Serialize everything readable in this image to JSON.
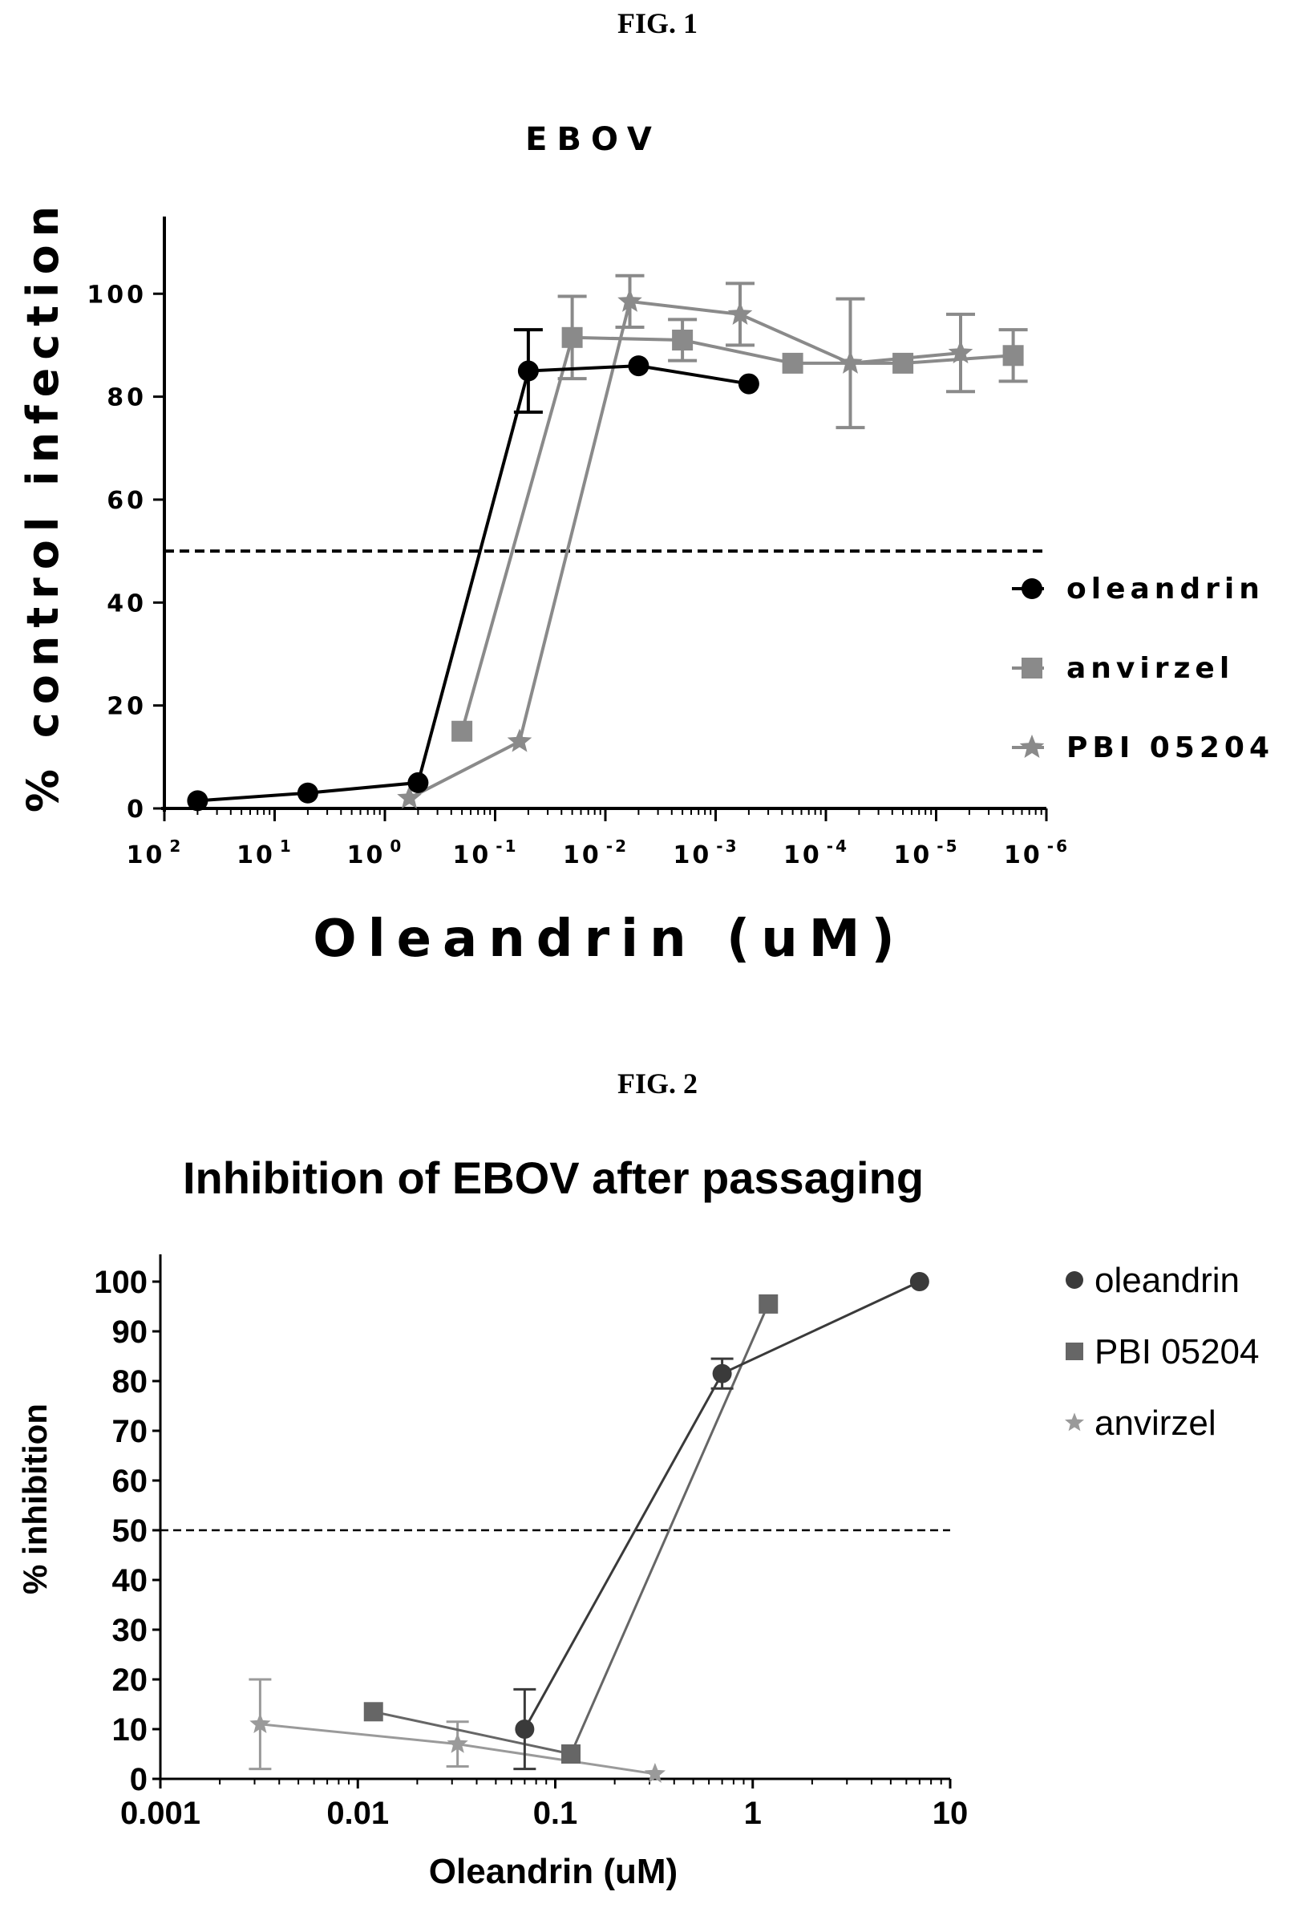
{
  "fig1_label": "FIG. 1",
  "fig2_label": "FIG. 2",
  "chart_data": [
    {
      "type": "line",
      "title": "EBOV",
      "xlabel": "Oleandrin (uM)",
      "ylabel": "% control infection",
      "xscale": "log",
      "x_axis_reversed": true,
      "xlim": [
        100,
        1e-06
      ],
      "ylim": [
        0,
        115
      ],
      "xticks": [
        {
          "value": 100,
          "base": "10",
          "exp": "2"
        },
        {
          "value": 10,
          "base": "10",
          "exp": "1"
        },
        {
          "value": 1,
          "base": "10",
          "exp": "0"
        },
        {
          "value": 0.1,
          "base": "10",
          "exp": "-1"
        },
        {
          "value": 0.01,
          "base": "10",
          "exp": "-2"
        },
        {
          "value": 0.001,
          "base": "10",
          "exp": "-3"
        },
        {
          "value": 0.0001,
          "base": "10",
          "exp": "-4"
        },
        {
          "value": 1e-05,
          "base": "10",
          "exp": "-5"
        },
        {
          "value": 1e-06,
          "base": "10",
          "exp": "-6"
        }
      ],
      "yticks": [
        0,
        20,
        40,
        60,
        80,
        100
      ],
      "reference_line": 50,
      "legend_position": "right",
      "grid": false,
      "series": [
        {
          "name": "oleandrin",
          "marker": "circle",
          "color": "#000000",
          "x": [
            50,
            5,
            0.5,
            0.05,
            0.005,
            0.0005
          ],
          "y": [
            1.5,
            3,
            5,
            85,
            86,
            82.5
          ],
          "err": [
            0,
            0,
            0,
            8,
            0,
            0
          ]
        },
        {
          "name": "anvirzel",
          "marker": "square",
          "color": "#8a8a8a",
          "x": [
            0.2,
            0.02,
            0.002,
            0.0002,
            2e-05,
            2e-06
          ],
          "y": [
            15,
            91.5,
            91,
            86.5,
            86.5,
            88
          ],
          "err": [
            0,
            8,
            4,
            0,
            0,
            5
          ]
        },
        {
          "name": "PBI 05204",
          "marker": "triangle",
          "color": "#8a8a8a",
          "x": [
            0.6,
            0.06,
            0.006,
            0.0006,
            6e-05,
            6e-06
          ],
          "y": [
            2,
            13,
            98.5,
            96,
            86.5,
            88.5
          ],
          "err": [
            0,
            0,
            5,
            6,
            12.5,
            7.5
          ]
        }
      ]
    },
    {
      "type": "line",
      "title": "Inhibition of EBOV after passaging",
      "xlabel": "Oleandrin (uM)",
      "ylabel": "% inhibition",
      "xscale": "log",
      "xlim": [
        0.001,
        10
      ],
      "ylim": [
        0,
        100
      ],
      "xticks": [
        {
          "value": 0.001,
          "label": "0.001"
        },
        {
          "value": 0.01,
          "label": "0.01"
        },
        {
          "value": 0.1,
          "label": "0.1"
        },
        {
          "value": 1,
          "label": "1"
        },
        {
          "value": 10,
          "label": "10"
        }
      ],
      "yticks": [
        0,
        10,
        20,
        30,
        40,
        50,
        60,
        70,
        80,
        90,
        100
      ],
      "reference_line": 50,
      "legend_position": "right",
      "grid": false,
      "series": [
        {
          "name": "oleandrin",
          "marker": "circle",
          "color": "#3a3a3a",
          "x": [
            0.07,
            0.7,
            7
          ],
          "y": [
            10,
            81.5,
            100
          ],
          "err": [
            8,
            3,
            0
          ]
        },
        {
          "name": "PBI 05204",
          "marker": "square",
          "color": "#666666",
          "x": [
            0.012,
            0.12,
            1.2
          ],
          "y": [
            13.5,
            5,
            95.5
          ],
          "err": [
            0,
            0,
            0
          ]
        },
        {
          "name": "anvirzel",
          "marker": "triangle",
          "color": "#9a9a9a",
          "x": [
            0.0032,
            0.032,
            0.32
          ],
          "y": [
            11,
            7,
            1
          ],
          "err": [
            9,
            4.5,
            0
          ]
        }
      ]
    }
  ]
}
